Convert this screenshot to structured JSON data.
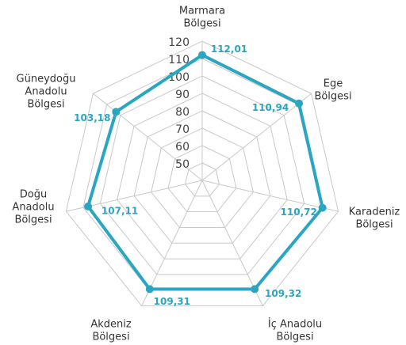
{
  "chart_data": {
    "type": "radar",
    "categories": [
      [
        "Marmara",
        "Bölgesi"
      ],
      [
        "Ege",
        "Bölgesi"
      ],
      [
        "Karadeniz",
        "Bölgesi"
      ],
      [
        "İç Anadolu",
        "Bölgesi"
      ],
      [
        "Akdeniz",
        "Bölgesi"
      ],
      [
        "Doğu",
        "Anadolu",
        "Bölgesi"
      ],
      [
        "Güneydoğu",
        "Anadolu",
        "Bölgesi"
      ]
    ],
    "values": [
      112.01,
      110.94,
      110.72,
      109.32,
      109.31,
      107.11,
      103.18
    ],
    "value_labels": [
      "112,01",
      "110,94",
      "110,72",
      "109,32",
      "109,31",
      "107,11",
      "103,18"
    ],
    "color": "#2aa6c2",
    "rlim": [
      40,
      120
    ],
    "rticks": [
      50,
      60,
      70,
      80,
      90,
      100,
      110,
      120
    ],
    "grid": true
  }
}
